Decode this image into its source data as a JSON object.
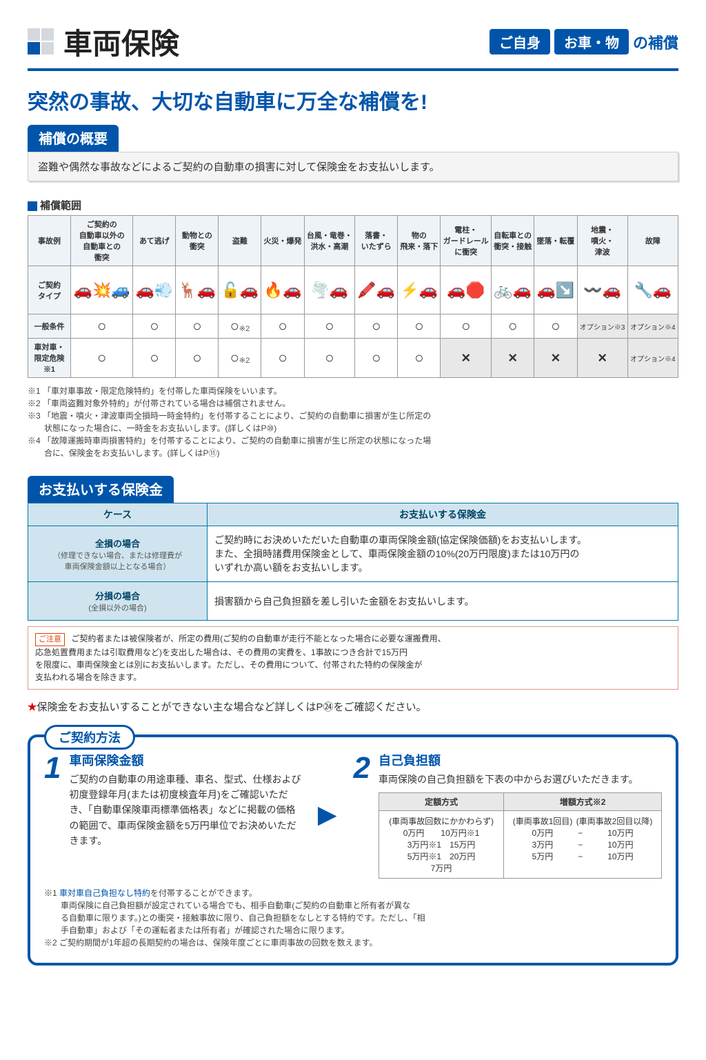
{
  "header": {
    "title": "車両保険",
    "tag1": "ご自身",
    "tag2": "お車・物",
    "suffix": "の補償"
  },
  "headline": "突然の事故、大切な自動車に万全な補償を!",
  "overview": {
    "badge": "補償の概要",
    "text": "盗難や偶然な事故などによるご契約の自動車の損害に対して保険金をお支払いします。"
  },
  "coverage": {
    "head": "補償範囲",
    "row_labels": [
      "事故例",
      "ご契約\nタイプ",
      "一般条件",
      "車対車・\n限定危険※1"
    ],
    "cols": [
      "ご契約の\n自動車以外の\n自動車との\n衝突",
      "あて逃げ",
      "動物との\n衝突",
      "盗難",
      "火災・爆発",
      "台風・竜巻・\n洪水・高潮",
      "落書・\nいたずら",
      "物の\n飛来・落下",
      "電柱・\nガードレール\nに衝突",
      "自転車との\n衝突・接触",
      "墜落・転覆",
      "地震・\n噴火・\n津波",
      "故障"
    ],
    "icons": [
      "🚗💥🚙",
      "🚗💨",
      "🦌🚗",
      "🔓🚗",
      "🔥🚗",
      "🌪️🚗",
      "🖍️🚗",
      "⚡🚗",
      "🚗🛑",
      "🚲🚗",
      "🚗↘️",
      "〰️🚗",
      "🔧🚗"
    ],
    "general": [
      "○",
      "○",
      "○",
      "○※2",
      "○",
      "○",
      "○",
      "○",
      "○",
      "○",
      "○",
      "オプション※3",
      "オプション※4"
    ],
    "limited": [
      "○",
      "○",
      "○",
      "○※2",
      "○",
      "○",
      "○",
      "○",
      "×",
      "×",
      "×",
      "×",
      "オプション※4"
    ],
    "notes": [
      "※1 「車対車事故・限定危険特約」を付帯した車両保険をいいます。",
      "※2 「車両盗難対象外特約」が付帯されている場合は補償されません。",
      "※3 「地震・噴火・津波車両全損時一時金特約」を付帯することにより、ご契約の自動車に損害が生じ所定の\n　　状態になった場合に、一時金をお支払いします。(詳しくはP⑩)",
      "※4 「故障運搬時車両損害特約」を付帯することにより、ご契約の自動車に損害が生じ所定の状態になった場\n　　合に、保険金をお支払いします。(詳しくはP⑪)"
    ]
  },
  "payment": {
    "badge": "お支払いする保険金",
    "th1": "ケース",
    "th2": "お支払いする保険金",
    "case1_t": "全損の場合",
    "case1_s": "（修理できない場合、または修理費が\n車両保険金額以上となる場合）",
    "case1_body": "ご契約時にお決めいただいた自動車の車両保険金額(協定保険価額)をお支払いします。\nまた、全損時諸費用保険金として、車両保険金額の10%(20万円限度)または10万円の\nいずれか高い額をお支払いします。",
    "case2_t": "分損の場合",
    "case2_s": "(全損以外の場合)",
    "case2_body": "損害額から自己負担額を差し引いた金額をお支払いします。",
    "caution_lbl": "ご注意",
    "caution": "ご契約者または被保険者が、所定の費用(ご契約の自動車が走行不能となった場合に必要な運搬費用、\n応急処置費用または引取費用など)を支出した場合は、その費用の実費を、1事故につき合計で15万円\nを限度に、車両保険金とは別にお支払いします。ただし、その費用について、付帯された特約の保険金が\n支払われる場合を除きます。"
  },
  "star": "保険金をお支払いすることができない主な場合など詳しくはP㉔をご確認ください。",
  "contract": {
    "tab": "ご契約方法",
    "c1_num": "1",
    "c1_title": "車両保険金額",
    "c1_text": "ご契約の自動車の用途車種、車名、型式、仕様および初度登録年月(または初度検査年月)をご確認いただき、「自動車保険車両標準価格表」などに掲載の価格の範囲で、車両保険金額を5万円単位でお決めいただきます。",
    "c2_num": "2",
    "c2_title": "自己負担額",
    "c2_text": "車両保険の自己負担額を下表の中からお選びいただきます。",
    "ded_th1": "定額方式",
    "ded_th2": "増額方式※2",
    "ded_left_h": "(車両事故回数にかかわらず)",
    "ded_left": "0万円　　10万円※1\n3万円※1　15万円\n5万円※1　20万円\n7万円",
    "ded_r1_h": "(車両事故1回目)",
    "ded_r2_h": "(車両事故2回目以降)",
    "ded_right": "0万円　　　−　　　10万円\n3万円　　　−　　　10万円\n5万円　　　−　　　10万円",
    "foot": [
      "※1 車対車自己負担なし特約を付帯することができます。",
      "　　車両保険に自己負担額が設定されている場合でも、相手自動車(ご契約の自動車と所有者が異な\n　　る自動車に限ります。)との衝突・接触事故に限り、自己負担額をなしとする特約です。ただし、「相\n　　手自動車」および「その運転者または所有者」が確認された場合に限ります。",
      "※2 ご契約期間が1年超の長期契約の場合は、保険年度ごとに車両事故の回数を数えます。"
    ]
  }
}
